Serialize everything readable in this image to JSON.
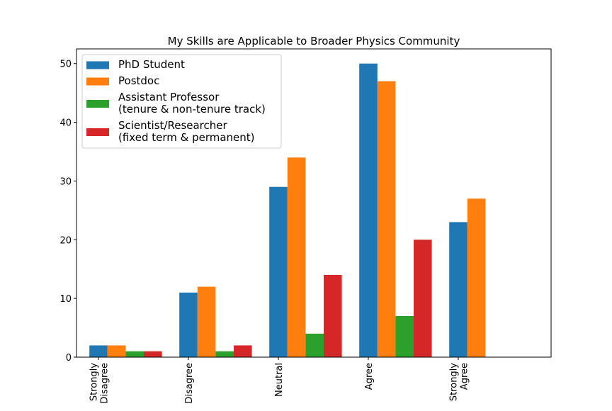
{
  "chart_data": {
    "type": "bar",
    "title": "My Skills are Applicable to Broader Physics Community",
    "xlabel": "",
    "ylabel": "",
    "categories": [
      [
        "Strongly",
        "Disagree"
      ],
      [
        "Disagree"
      ],
      [
        "Neutral"
      ],
      [
        "Agree"
      ],
      [
        "Strongly",
        "Agree"
      ]
    ],
    "series": [
      {
        "name": [
          "PhD Student"
        ],
        "color": "#1f77b4",
        "values": [
          2,
          11,
          29,
          50,
          23
        ]
      },
      {
        "name": [
          "Postdoc"
        ],
        "color": "#ff7f0e",
        "values": [
          2,
          12,
          34,
          47,
          27
        ]
      },
      {
        "name": [
          "Assistant Professor",
          "(tenure & non-tenure track)"
        ],
        "color": "#2ca02c",
        "values": [
          1,
          1,
          4,
          7,
          0
        ]
      },
      {
        "name": [
          "Scientist/Researcher",
          "(fixed term & permanent)"
        ],
        "color": "#d62728",
        "values": [
          1,
          2,
          14,
          20,
          0
        ]
      }
    ],
    "ylim": [
      0,
      52.5
    ],
    "yticks": [
      0,
      10,
      20,
      30,
      40,
      50
    ],
    "grid": false,
    "legend_position": "top-left"
  }
}
